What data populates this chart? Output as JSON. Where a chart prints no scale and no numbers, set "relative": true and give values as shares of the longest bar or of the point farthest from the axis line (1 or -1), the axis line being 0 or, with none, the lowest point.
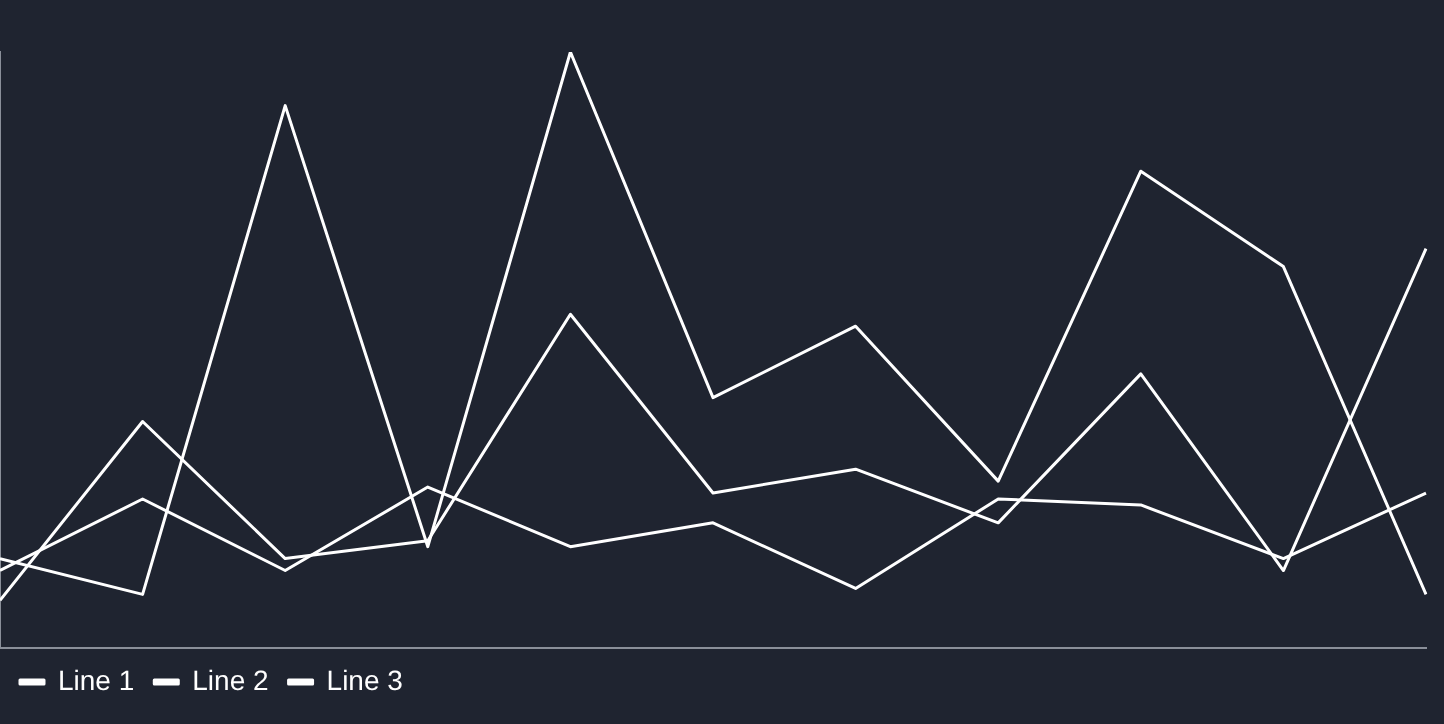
{
  "chart_data": {
    "type": "line",
    "relative": true,
    "categories": [
      null,
      null,
      null,
      null,
      null,
      null,
      null,
      null,
      null,
      null,
      null
    ],
    "series": [
      {
        "name": "Line 1",
        "color": "#ffffff",
        "values": [
          0.15,
          0.09,
          0.91,
          0.17,
          1,
          0.42,
          0.54,
          0.28,
          0.8,
          0.64,
          0.09
        ]
      },
      {
        "name": "Line 2",
        "color": "#ffffff",
        "values": [
          0.08,
          0.38,
          0.15,
          0.18,
          0.56,
          0.26,
          0.3,
          0.21,
          0.46,
          0.13,
          0.67
        ]
      },
      {
        "name": "Line 3",
        "color": "#ffffff",
        "values": [
          0.13,
          0.25,
          0.13,
          0.27,
          0.17,
          0.21,
          0.1,
          0.25,
          0.24,
          0.15,
          0.26
        ]
      }
    ],
    "legend": "bottom left",
    "marker": "none",
    "grid": false
  }
}
